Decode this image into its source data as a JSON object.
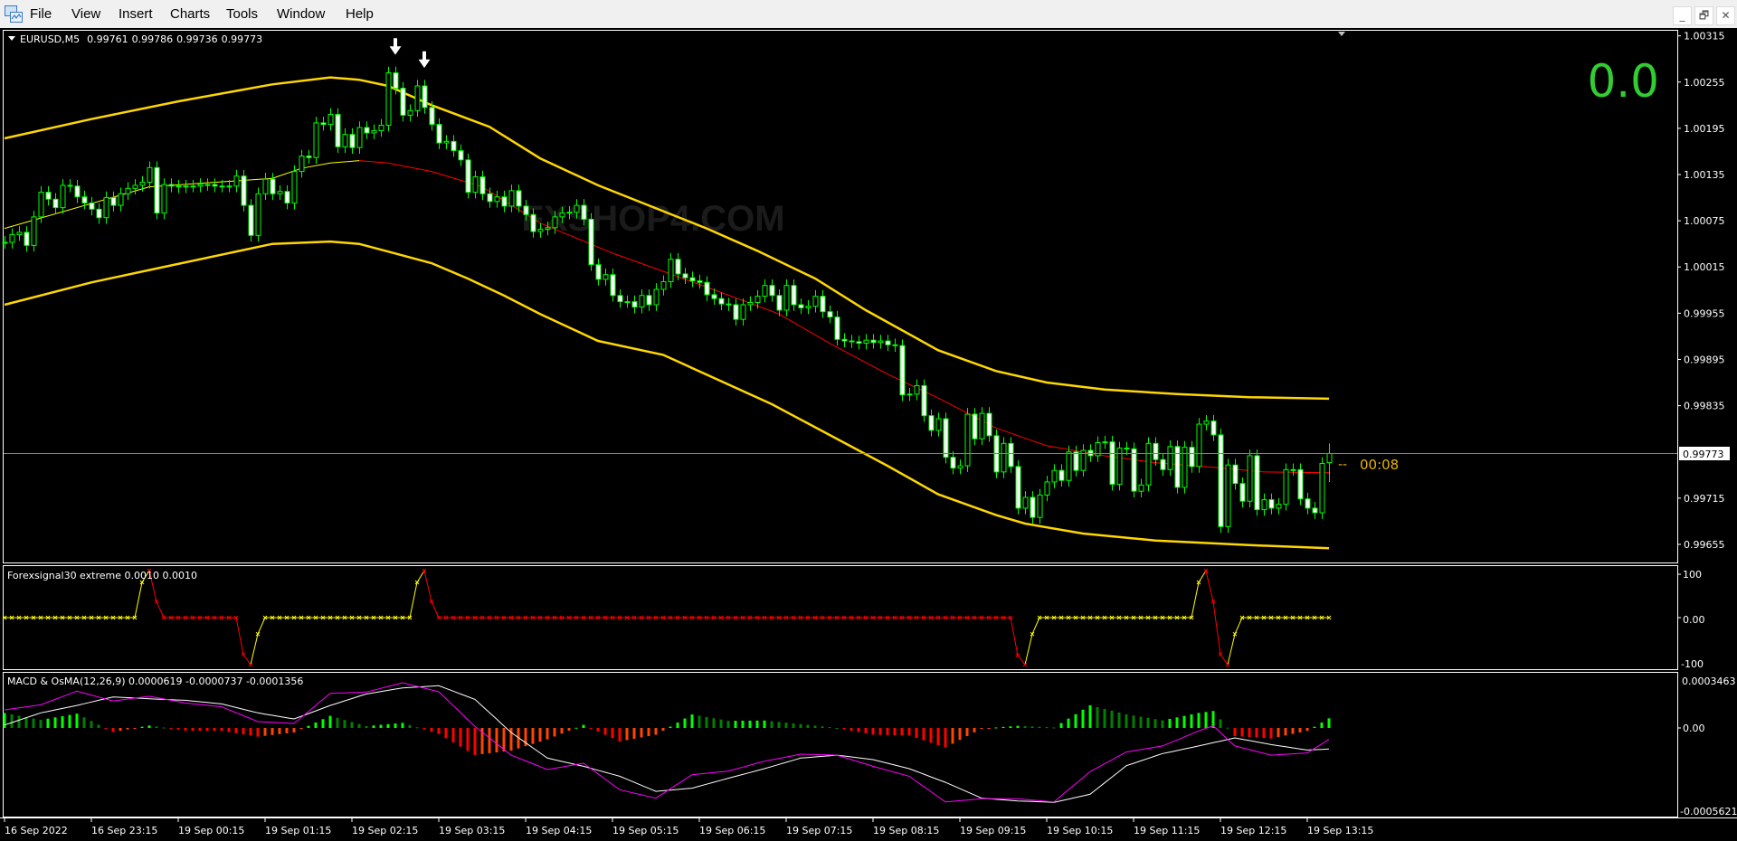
{
  "menu": {
    "items": [
      "File",
      "View",
      "Insert",
      "Charts",
      "Tools",
      "Window",
      "Help"
    ],
    "window_controls": {
      "minimize": "_",
      "restore": "🗗",
      "close": "✕"
    }
  },
  "chart": {
    "symbol": "EURUSD,M5",
    "ohlc": [
      "0.99761",
      "0.99786",
      "0.99736",
      "0.99773"
    ],
    "current_price": "0.99773",
    "countdown": "00:08",
    "countdown_dash": "--",
    "big_counter": "0.0",
    "watermark": "FXSHOP4.COM",
    "price_axis": [
      "1.00315",
      "1.00255",
      "1.00195",
      "1.00135",
      "1.00075",
      "1.00015",
      "0.99955",
      "0.99895",
      "0.99835",
      "0.99715",
      "0.99655"
    ],
    "time_axis": [
      "16 Sep 2022",
      "16 Sep 23:15",
      "19 Sep 00:15",
      "19 Sep 01:15",
      "19 Sep 02:15",
      "19 Sep 03:15",
      "19 Sep 04:15",
      "19 Sep 05:15",
      "19 Sep 06:15",
      "19 Sep 07:15",
      "19 Sep 08:15",
      "19 Sep 09:15",
      "19 Sep 10:15",
      "19 Sep 11:15",
      "19 Sep 12:15",
      "19 Sep 13:15"
    ],
    "colors": {
      "background": "#000000",
      "candle_outline": "#00ff00",
      "bear_body": "#ffffff",
      "bull_body": "#000000",
      "band": "#ffd700",
      "mid_rising": "#ffff00",
      "mid_falling": "#ff0000",
      "big_counter": "#32cd32",
      "countdown": "#e6b400",
      "price_line": "#808080",
      "watermark": "#1b1b1b"
    },
    "sell_arrow_candles": [
      54,
      58
    ]
  },
  "indicator1": {
    "title": "Forexsignal30 extreme 0.0010 0.0010",
    "axis": [
      "100",
      "0.00",
      "-100"
    ],
    "range": [
      -100,
      100
    ],
    "nonzero": [
      [
        19,
        75
      ],
      [
        20,
        100
      ],
      [
        21,
        34
      ],
      [
        33,
        -78
      ],
      [
        34,
        -100
      ],
      [
        35,
        -35
      ],
      [
        57,
        75
      ],
      [
        58,
        100
      ],
      [
        59,
        34
      ],
      [
        140,
        -80
      ],
      [
        141,
        -100
      ],
      [
        142,
        -35
      ],
      [
        165,
        75
      ],
      [
        166,
        100
      ],
      [
        167,
        34
      ],
      [
        168,
        -78
      ],
      [
        169,
        -100
      ],
      [
        170,
        -35
      ]
    ],
    "red_ranges": [
      [
        20,
        34
      ],
      [
        58,
        141
      ],
      [
        166,
        169
      ]
    ],
    "colors": {
      "up": "#ffff00",
      "down": "#ff0000"
    }
  },
  "indicator2": {
    "title": "MACD & OsMA(12,26,9) 0.0000619 -0.0000737 -0.0001356",
    "axis": [
      "0.0003463",
      "0.00",
      "-0.0005621"
    ],
    "range": [
      -0.0005621,
      0.0003463
    ],
    "colors": {
      "macd": "#ff00ff",
      "signal": "#ffffff",
      "hist_up_rising": "#00ff00",
      "hist_up_falling": "#008000",
      "hist_down_falling": "#ff0000",
      "hist_down_rising": "#ff4500"
    }
  },
  "chart_data": {
    "type": "candlestick",
    "timeframe": "M5",
    "last_candle": {
      "open": 0.99761,
      "high": 0.99786,
      "low": 0.99736,
      "close": 0.99773
    },
    "closes": [
      1.00047,
      1.00057,
      1.0006,
      1.00043,
      1.0008,
      1.00112,
      1.00103,
      1.00092,
      1.00121,
      1.0012,
      1.00106,
      1.00098,
      1.0009,
      1.00079,
      1.00105,
      1.00095,
      1.0011,
      1.00117,
      1.00121,
      1.00125,
      1.00144,
      1.00085,
      1.00122,
      1.0012,
      1.00119,
      1.0012,
      1.0012,
      1.00122,
      1.00122,
      1.0012,
      1.0012,
      1.0012,
      1.00133,
      1.00095,
      1.00056,
      1.0011,
      1.00129,
      1.0011,
      1.00113,
      1.00098,
      1.00139,
      1.00159,
      1.00157,
      1.00202,
      1.002,
      1.00213,
      1.00171,
      1.00187,
      1.0017,
      1.00196,
      1.00189,
      1.00192,
      1.00199,
      1.00267,
      1.00247,
      1.00212,
      1.00218,
      1.0025,
      1.00222,
      1.002,
      1.00176,
      1.00178,
      1.00166,
      1.00154,
      1.00112,
      1.00132,
      1.0011,
      1.001,
      1.00106,
      1.00094,
      1.00114,
      1.00094,
      1.00083,
      1.00061,
      1.00064,
      1.00066,
      1.0008,
      1.00085,
      1.00086,
      1.00095,
      1.00077,
      1.00018,
      0.99999,
      1.00005,
      0.99978,
      0.9997,
      0.9997,
      0.99963,
      0.99978,
      0.99966,
      0.99986,
      0.99996,
      1.00025,
      1.00006,
      1.00001,
      0.99997,
      0.99995,
      0.99979,
      0.99974,
      0.99967,
      0.99966,
      0.99947,
      0.99966,
      0.99969,
      0.99977,
      0.99991,
      0.99978,
      0.99959,
      0.99991,
      0.99966,
      0.99962,
      0.99964,
      0.99977,
      0.99957,
      0.9995,
      0.99921,
      0.99919,
      0.99918,
      0.99916,
      0.9992,
      0.99917,
      0.99919,
      0.99914,
      0.99913,
      0.99849,
      0.9985,
      0.99861,
      0.99822,
      0.99803,
      0.99818,
      0.99768,
      0.99754,
      0.99757,
      0.99824,
      0.99792,
      0.99825,
      0.99796,
      0.99749,
      0.99786,
      0.99756,
      0.99702,
      0.99716,
      0.9969,
      0.99719,
      0.99736,
      0.99751,
      0.99738,
      0.99775,
      0.99751,
      0.99777,
      0.9977,
      0.99787,
      0.99788,
      0.99733,
      0.9978,
      0.99779,
      0.99724,
      0.99732,
      0.99786,
      0.99765,
      0.99752,
      0.99782,
      0.99729,
      0.99781,
      0.99756,
      0.99811,
      0.99815,
      0.99797,
      0.99678,
      0.99758,
      0.99734,
      0.99711,
      0.9977,
      0.997,
      0.99713,
      0.99702,
      0.99707,
      0.99752,
      0.99752,
      0.99714,
      0.99702,
      0.99696,
      0.9976,
      0.99773
    ],
    "upper_band": [
      [
        0,
        1.00182
      ],
      [
        12,
        1.00207
      ],
      [
        24,
        1.0023
      ],
      [
        37,
        1.00252
      ],
      [
        45,
        1.00261
      ],
      [
        49,
        1.00258
      ],
      [
        53,
        1.0025
      ],
      [
        59,
        1.00225
      ],
      [
        67,
        1.00197
      ],
      [
        74,
        1.00156
      ],
      [
        82,
        1.00121
      ],
      [
        89,
        1.00095
      ],
      [
        97,
        1.00065
      ],
      [
        104,
        1.00036
      ],
      [
        112,
        1.0
      ],
      [
        119,
        0.99959
      ],
      [
        129,
        0.99907
      ],
      [
        137,
        0.9988
      ],
      [
        144,
        0.99865
      ],
      [
        152,
        0.99856
      ],
      [
        162,
        0.9985
      ],
      [
        172,
        0.99846
      ],
      [
        183,
        0.99844
      ]
    ],
    "middle_band": [
      [
        0,
        1.00065
      ],
      [
        20,
        1.00119
      ],
      [
        37,
        1.0013
      ],
      [
        41,
        1.00143
      ],
      [
        45,
        1.0015
      ],
      [
        49,
        1.00153
      ],
      [
        53,
        1.0015
      ],
      [
        59,
        1.00139
      ],
      [
        66,
        1.00119
      ],
      [
        74,
        1.00072
      ],
      [
        84,
        1.00033
      ],
      [
        92,
        1.00006
      ],
      [
        99,
        0.99982
      ],
      [
        107,
        0.99954
      ],
      [
        114,
        0.99916
      ],
      [
        122,
        0.99876
      ],
      [
        129,
        0.99845
      ],
      [
        137,
        0.99806
      ],
      [
        144,
        0.99783
      ],
      [
        152,
        0.9977
      ],
      [
        159,
        0.99761
      ],
      [
        167,
        0.99755
      ],
      [
        174,
        0.99749
      ],
      [
        183,
        0.99748
      ]
    ],
    "lower_band": [
      [
        0,
        0.99966
      ],
      [
        12,
        0.99995
      ],
      [
        20,
        1.00011
      ],
      [
        37,
        1.00045
      ],
      [
        45,
        1.00048
      ],
      [
        49,
        1.00045
      ],
      [
        53,
        1.00035
      ],
      [
        59,
        1.0002
      ],
      [
        64,
        1.0
      ],
      [
        69,
        0.99978
      ],
      [
        74,
        0.99954
      ],
      [
        82,
        0.99919
      ],
      [
        91,
        0.99901
      ],
      [
        106,
        0.99837
      ],
      [
        122,
        0.99757
      ],
      [
        129,
        0.9972
      ],
      [
        137,
        0.99693
      ],
      [
        141,
        0.99682
      ],
      [
        149,
        0.99669
      ],
      [
        159,
        0.9966
      ],
      [
        172,
        0.99654
      ],
      [
        183,
        0.9965
      ]
    ],
    "macd": [
      [
        0,
        0.000116
      ],
      [
        5,
        0.000149
      ],
      [
        10,
        0.000237
      ],
      [
        15,
        0.000174
      ],
      [
        20,
        0.000204
      ],
      [
        25,
        0.000161
      ],
      [
        30,
        0.000136
      ],
      [
        35,
        4.1e-05
      ],
      [
        40,
        2.9e-05
      ],
      [
        45,
        0.000223
      ],
      [
        50,
        0.000231
      ],
      [
        55,
        0.000291
      ],
      [
        60,
        0.000233
      ],
      [
        65,
        1e-05
      ],
      [
        70,
        -0.000175
      ],
      [
        75,
        -0.000268
      ],
      [
        80,
        -0.000227
      ],
      [
        85,
        -0.000398
      ],
      [
        90,
        -0.000452
      ],
      [
        95,
        -0.000301
      ],
      [
        100,
        -0.000278
      ],
      [
        105,
        -0.000214
      ],
      [
        110,
        -0.000169
      ],
      [
        115,
        -0.000175
      ],
      [
        120,
        -0.000247
      ],
      [
        125,
        -0.000311
      ],
      [
        130,
        -0.000476
      ],
      [
        135,
        -0.000456
      ],
      [
        140,
        -0.000456
      ],
      [
        145,
        -0.000476
      ],
      [
        150,
        -0.000281
      ],
      [
        155,
        -0.000155
      ],
      [
        160,
        -0.000116
      ],
      [
        165,
        -1.9e-05
      ],
      [
        167,
        1.4e-05
      ],
      [
        170,
        -0.000116
      ],
      [
        175,
        -0.000175
      ],
      [
        180,
        -0.000161
      ],
      [
        183,
        -7.37e-05
      ]
    ],
    "signal": [
      [
        0,
        1.9e-05
      ],
      [
        5,
        9.7e-05
      ],
      [
        10,
        0.000145
      ],
      [
        15,
        0.0002
      ],
      [
        20,
        0.000188
      ],
      [
        25,
        0.000178
      ],
      [
        30,
        0.000155
      ],
      [
        35,
        9.7e-05
      ],
      [
        40,
        5.8e-05
      ],
      [
        45,
        0.000145
      ],
      [
        50,
        0.000219
      ],
      [
        55,
        0.000258
      ],
      [
        60,
        0.000272
      ],
      [
        65,
        0.000184
      ],
      [
        70,
        -2.9e-05
      ],
      [
        75,
        -0.000194
      ],
      [
        80,
        -0.000247
      ],
      [
        85,
        -0.000311
      ],
      [
        90,
        -0.000408
      ],
      [
        95,
        -0.000388
      ],
      [
        100,
        -0.000324
      ],
      [
        105,
        -0.000262
      ],
      [
        110,
        -0.000194
      ],
      [
        115,
        -0.000175
      ],
      [
        120,
        -0.000204
      ],
      [
        125,
        -0.000262
      ],
      [
        130,
        -0.00035
      ],
      [
        135,
        -0.000452
      ],
      [
        140,
        -0.00047
      ],
      [
        145,
        -0.000479
      ],
      [
        150,
        -0.000427
      ],
      [
        155,
        -0.000243
      ],
      [
        160,
        -0.000165
      ],
      [
        165,
        -0.000116
      ],
      [
        170,
        -6.4e-05
      ],
      [
        175,
        -0.000107
      ],
      [
        180,
        -0.000142
      ],
      [
        183,
        -0.0001356
      ]
    ]
  }
}
